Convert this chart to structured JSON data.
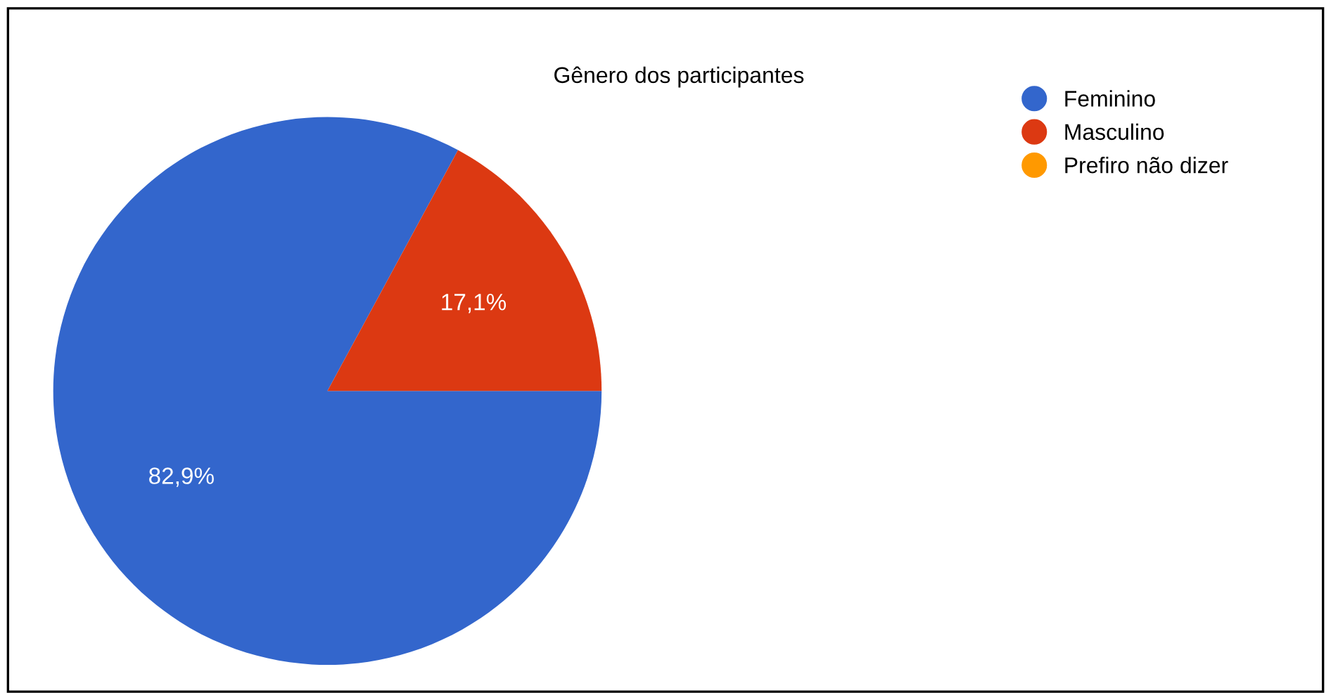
{
  "chart_data": {
    "type": "pie",
    "title": "Gênero dos participantes",
    "categories": [
      "Feminino",
      "Masculino",
      "Prefiro não dizer"
    ],
    "values": [
      82.9,
      17.1,
      0
    ],
    "colors": [
      "#3366cc",
      "#dc3912",
      "#ff9900"
    ],
    "value_labels": [
      "82,9%",
      "17,1%",
      null
    ],
    "legend": "right"
  }
}
